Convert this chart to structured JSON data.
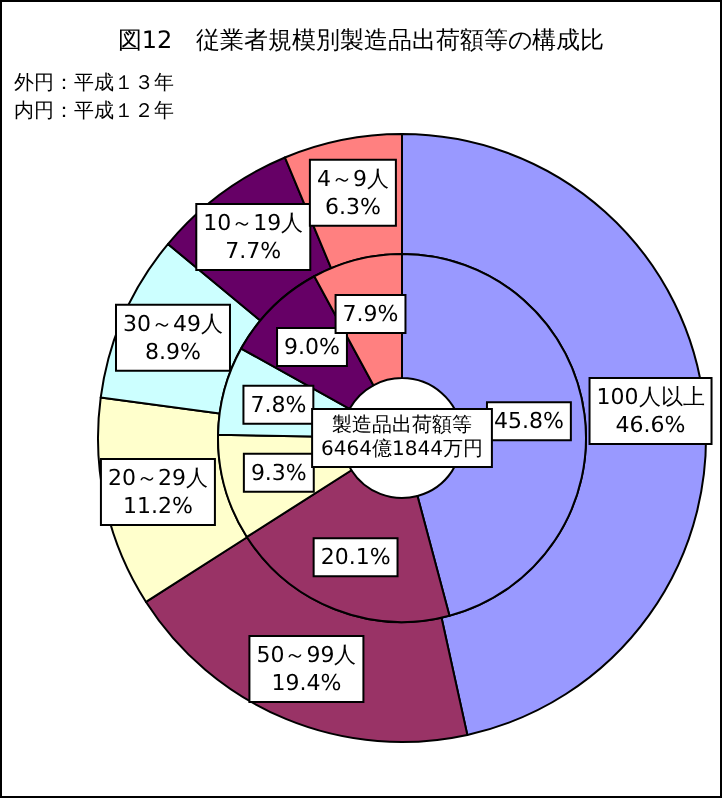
{
  "chart_data": {
    "type": "donut",
    "title": "図12　従業者規模別製造品出荷額等の構成比",
    "categories": [
      "100人以上",
      "50～99人",
      "20～29人",
      "30～49人",
      "10～19人",
      "4～9人"
    ],
    "colors": [
      "#9999ff",
      "#993366",
      "#ffffcc",
      "#ccffff",
      "#660066",
      "#ff8080"
    ],
    "series": [
      {
        "values": [
          46.6,
          19.4,
          11.2,
          8.9,
          7.7,
          6.3
        ],
        "value_labels": [
          "46.6%",
          "19.4%",
          "11.2%",
          "8.9%",
          "7.7%",
          "6.3%"
        ]
      },
      {
        "values": [
          45.8,
          20.1,
          9.3,
          7.8,
          9.0,
          7.9
        ],
        "value_labels": [
          "45.8%",
          "20.1%",
          "9.3%",
          "7.8%",
          "9.0%",
          "7.9%"
        ]
      }
    ],
    "annotations": [
      "外円：平成１３年",
      "内円：平成１２年",
      "製造品出荷額等\n6464億1844万円"
    ]
  }
}
